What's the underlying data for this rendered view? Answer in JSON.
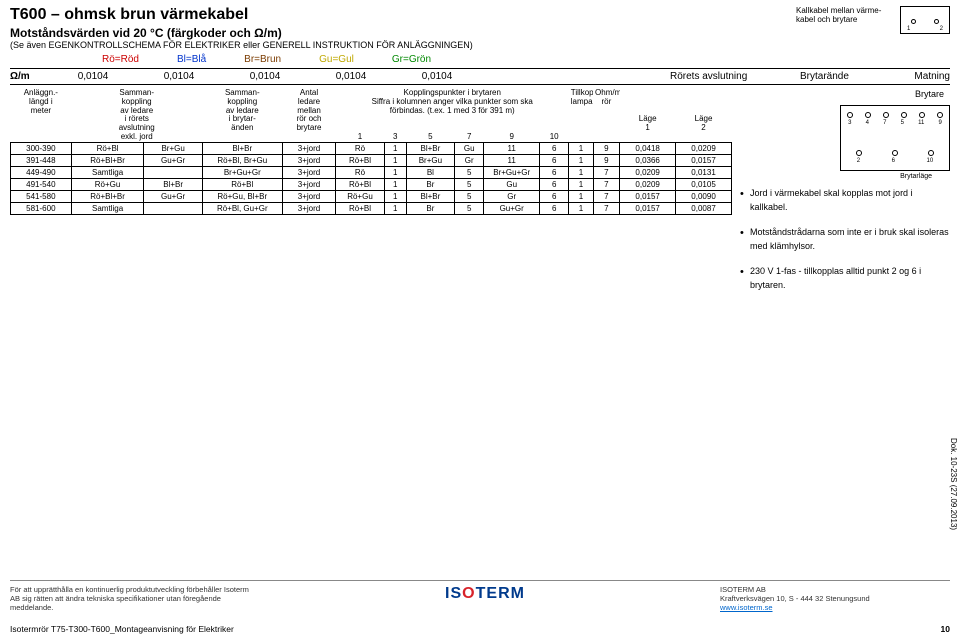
{
  "header": {
    "title": "T600 – ohmsk brun värmekabel",
    "subtitle": "Motståndsvärden vid 20 °C (färgkoder och Ω/m)",
    "subnote": "(Se även EGENKONTROLLSCHEMA FÖR ELEKTRIKER eller GENERELL INSTRUKTION FÖR ANLÄGGNINGEN)",
    "kallkabel_note": "Kallkabel mellan värme-kabel och brytare",
    "colors": {
      "ro": "Rö=Röd",
      "bl": "Bl=Blå",
      "br": "Br=Brun",
      "gu": "Gu=Gul",
      "gr": "Gr=Grön"
    },
    "smallbox_nums": [
      "1",
      "2"
    ]
  },
  "ohm": {
    "label": "Ω/m",
    "values": [
      "0,0104",
      "0,0104",
      "0,0104",
      "0,0104",
      "0,0104"
    ],
    "rorets": "Rörets avslutning",
    "brytar": "Brytarände",
    "matning": "Matning"
  },
  "table": {
    "col_widths": [
      "48",
      "52",
      "46",
      "58",
      "40",
      "32",
      "18",
      "32",
      "18",
      "32",
      "18",
      "24",
      "40",
      "26",
      "22",
      "44",
      "44"
    ],
    "headers": {
      "c1": [
        "Anläggn.-",
        "längd i",
        "meter",
        "",
        "",
        ""
      ],
      "c2": [
        "Samman-",
        "koppling",
        "av ledare",
        "i rörets",
        "avslutning",
        "exkl. jord"
      ],
      "c3": [
        "Samman-",
        "koppling",
        "av ledare",
        "i brytar-",
        "änden",
        ""
      ],
      "c4": [
        "Antal",
        "ledare",
        "mellan",
        "rör och",
        "brytare",
        ""
      ],
      "c5_span": "Kopplingspunkter i brytaren",
      "c5_sub1": "Siffra i kolumnen anger vilka punkter som ska",
      "c5_sub2": "förbindas. (t.ex. 1 med 3 för 391 m)",
      "c5_nums": [
        "1",
        "3",
        "5",
        "7",
        "9",
        "10"
      ],
      "c6": [
        "Tillkoppl.-",
        "lampa",
        "",
        "",
        "",
        ""
      ],
      "c7": [
        "Ohm/m",
        "rör",
        "",
        "",
        "",
        ""
      ],
      "c8": [
        "",
        "",
        "",
        "Läge",
        "1",
        ""
      ],
      "c9": [
        "",
        "",
        "",
        "Läge",
        "2",
        ""
      ]
    },
    "rows": [
      [
        "300-390",
        "Rö+Bl",
        "Br+Gu",
        "Bl+Br",
        "3+jord",
        "Rö",
        "1",
        "Bl+Br",
        "Gu",
        "11",
        "6",
        "1",
        "9",
        "0,0418",
        "0,0209"
      ],
      [
        "391-448",
        "Rö+Bl+Br",
        "Gu+Gr",
        "Rö+Bl, Br+Gu",
        "3+jord",
        "Rö+Bl",
        "1",
        "Br+Gu",
        "Gr",
        "11",
        "6",
        "1",
        "9",
        "0,0366",
        "0,0157"
      ],
      [
        "449-490",
        "Samtliga",
        "",
        "Br+Gu+Gr",
        "3+jord",
        "Rö",
        "1",
        "Bl",
        "5",
        "Br+Gu+Gr",
        "6",
        "1",
        "7",
        "0,0209",
        "0,0131"
      ],
      [
        "491-540",
        "Rö+Gu",
        "Bl+Br",
        "Rö+Bl",
        "3+jord",
        "Rö+Bl",
        "1",
        "Br",
        "5",
        "Gu",
        "6",
        "1",
        "7",
        "0,0209",
        "0,0105"
      ],
      [
        "541-580",
        "Rö+Bl+Br",
        "Gu+Gr",
        "Rö+Gu, Bl+Br",
        "3+jord",
        "Rö+Gu",
        "1",
        "Bl+Br",
        "5",
        "Gr",
        "6",
        "1",
        "7",
        "0,0157",
        "0,0090"
      ],
      [
        "581-600",
        "Samtliga",
        "",
        "Rö+Bl, Gu+Gr",
        "3+jord",
        "Rö+Bl",
        "1",
        "Br",
        "5",
        "Gu+Gr",
        "6",
        "1",
        "7",
        "0,0157",
        "0,0087"
      ]
    ]
  },
  "brytare": {
    "label": "Brytare",
    "top_nums": [
      "3",
      "4",
      "7",
      "5",
      "11",
      "9"
    ],
    "bot_nums": [
      "2",
      "6",
      "10"
    ],
    "sub_label": "Brytarläge"
  },
  "bullets": [
    "Jord i värmekabel skal kopplas mot jord i kallkabel.",
    "Motståndstrådarna som inte er i bruk skal isoleras med klämhylsor.",
    "230 V 1-fas - tillkopplas alltid punkt 2 og 6 i brytaren."
  ],
  "footer": {
    "left": "För att upprätthålla en kontinuerlig produktutveckling förbehåller Isoterm AB sig rätten att ändra tekniska specifikationer utan föregående meddelande.",
    "right_company": "ISOTERM AB",
    "right_addr": "Kraftverksvägen 10, S - 444 32 Stenungsund",
    "right_url": "www.isoterm.se",
    "pageleft": "Isotermrör T75-T300-T600_Montageanvisning för Elektriker",
    "pagenum": "10",
    "dokno": "Dok. 10-23S (27.09.2013)"
  }
}
